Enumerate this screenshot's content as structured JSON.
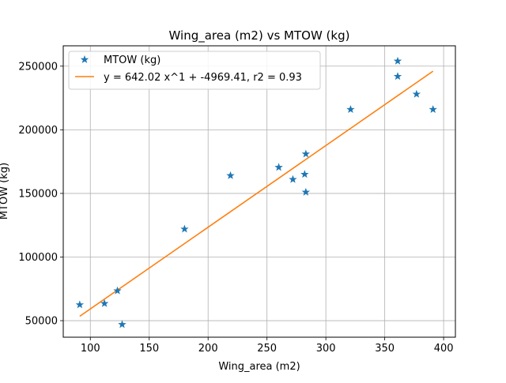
{
  "chart_data": {
    "type": "scatter",
    "title": "Wing_area (m2) vs MTOW (kg)",
    "xlabel": "Wing_area (m2)",
    "ylabel": "MTOW (kg)",
    "xlim": [
      77,
      410
    ],
    "ylim": [
      37000,
      266000
    ],
    "xticks": [
      100,
      150,
      200,
      250,
      300,
      350,
      400
    ],
    "yticks": [
      50000,
      100000,
      150000,
      200000,
      250000
    ],
    "grid": true,
    "legend_placement": "top-left",
    "series": [
      {
        "name": "MTOW (kg)",
        "kind": "scatter",
        "marker": "star",
        "color": "#1f77b4",
        "points": [
          {
            "x": 91,
            "y": 62500
          },
          {
            "x": 112,
            "y": 63500
          },
          {
            "x": 123,
            "y": 73500
          },
          {
            "x": 127,
            "y": 47000
          },
          {
            "x": 180,
            "y": 122000
          },
          {
            "x": 219,
            "y": 164000
          },
          {
            "x": 260,
            "y": 170500
          },
          {
            "x": 272,
            "y": 161000
          },
          {
            "x": 282,
            "y": 165000
          },
          {
            "x": 283,
            "y": 151000
          },
          {
            "x": 283,
            "y": 181000
          },
          {
            "x": 321,
            "y": 216000
          },
          {
            "x": 361,
            "y": 242000
          },
          {
            "x": 361,
            "y": 254000
          },
          {
            "x": 377,
            "y": 228000
          },
          {
            "x": 391,
            "y": 216000
          }
        ]
      },
      {
        "name": "y = 642.02 x^1 + -4969.41, r2 = 0.93",
        "kind": "line",
        "color": "#ff7f0e",
        "points": [
          {
            "x": 91,
            "y": 53454
          },
          {
            "x": 391,
            "y": 246060
          }
        ]
      }
    ]
  }
}
